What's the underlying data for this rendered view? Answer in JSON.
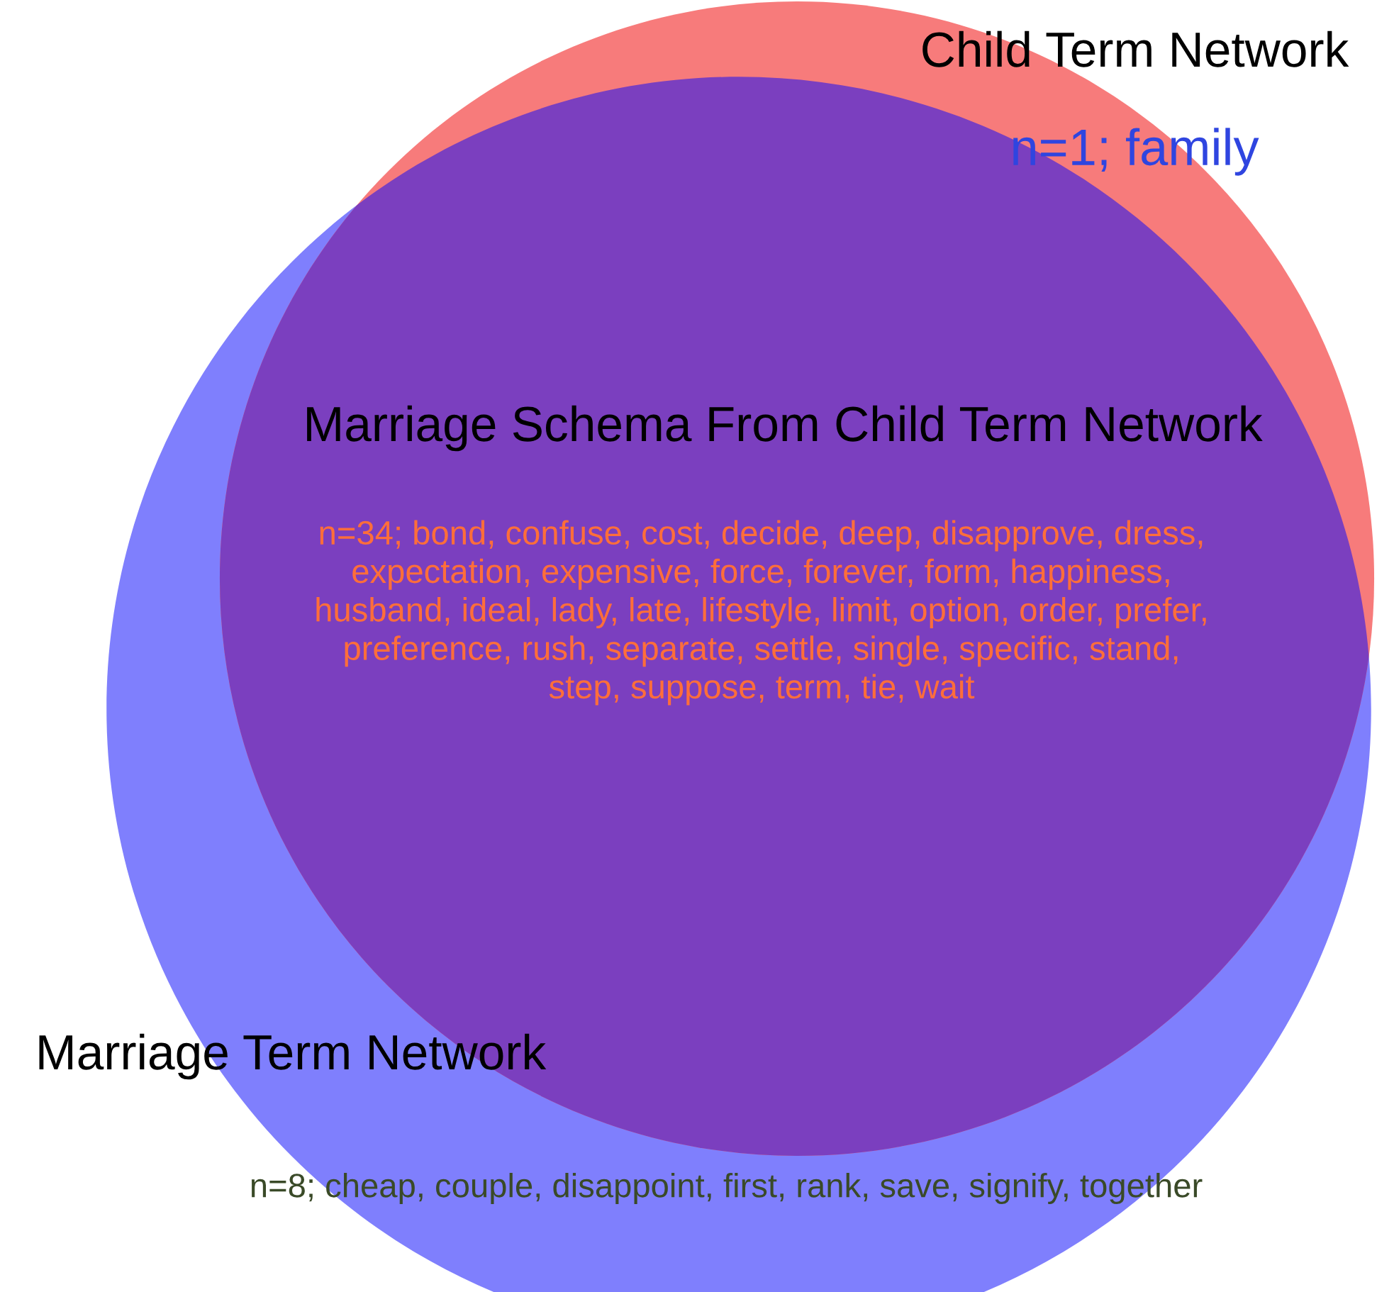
{
  "chart_data": {
    "type": "other",
    "categories": [
      "Child Term Network",
      "Marriage Schema From Child Term Network",
      "Marriage Term Network"
    ],
    "value_labels": [
      "n=1; family",
      "n=34; bond, confuse, cost, decide, deep, disapprove, dress,\nexpectation, expensive, force, forever, form, happiness,\nhusband, ideal, lady, late, lifestyle, limit, option, order, prefer,\npreference, rush, separate, settle, single, specific, stand,\nstep, suppose, term, tie, wait",
      "n=8; cheap, couple, disappoint, first, rank, save, signify, together"
    ],
    "values": [
      1,
      34,
      8
    ],
    "colors": [
      "#f77b7b",
      "#7b3fbf",
      "#7f7ffd"
    ]
  }
}
